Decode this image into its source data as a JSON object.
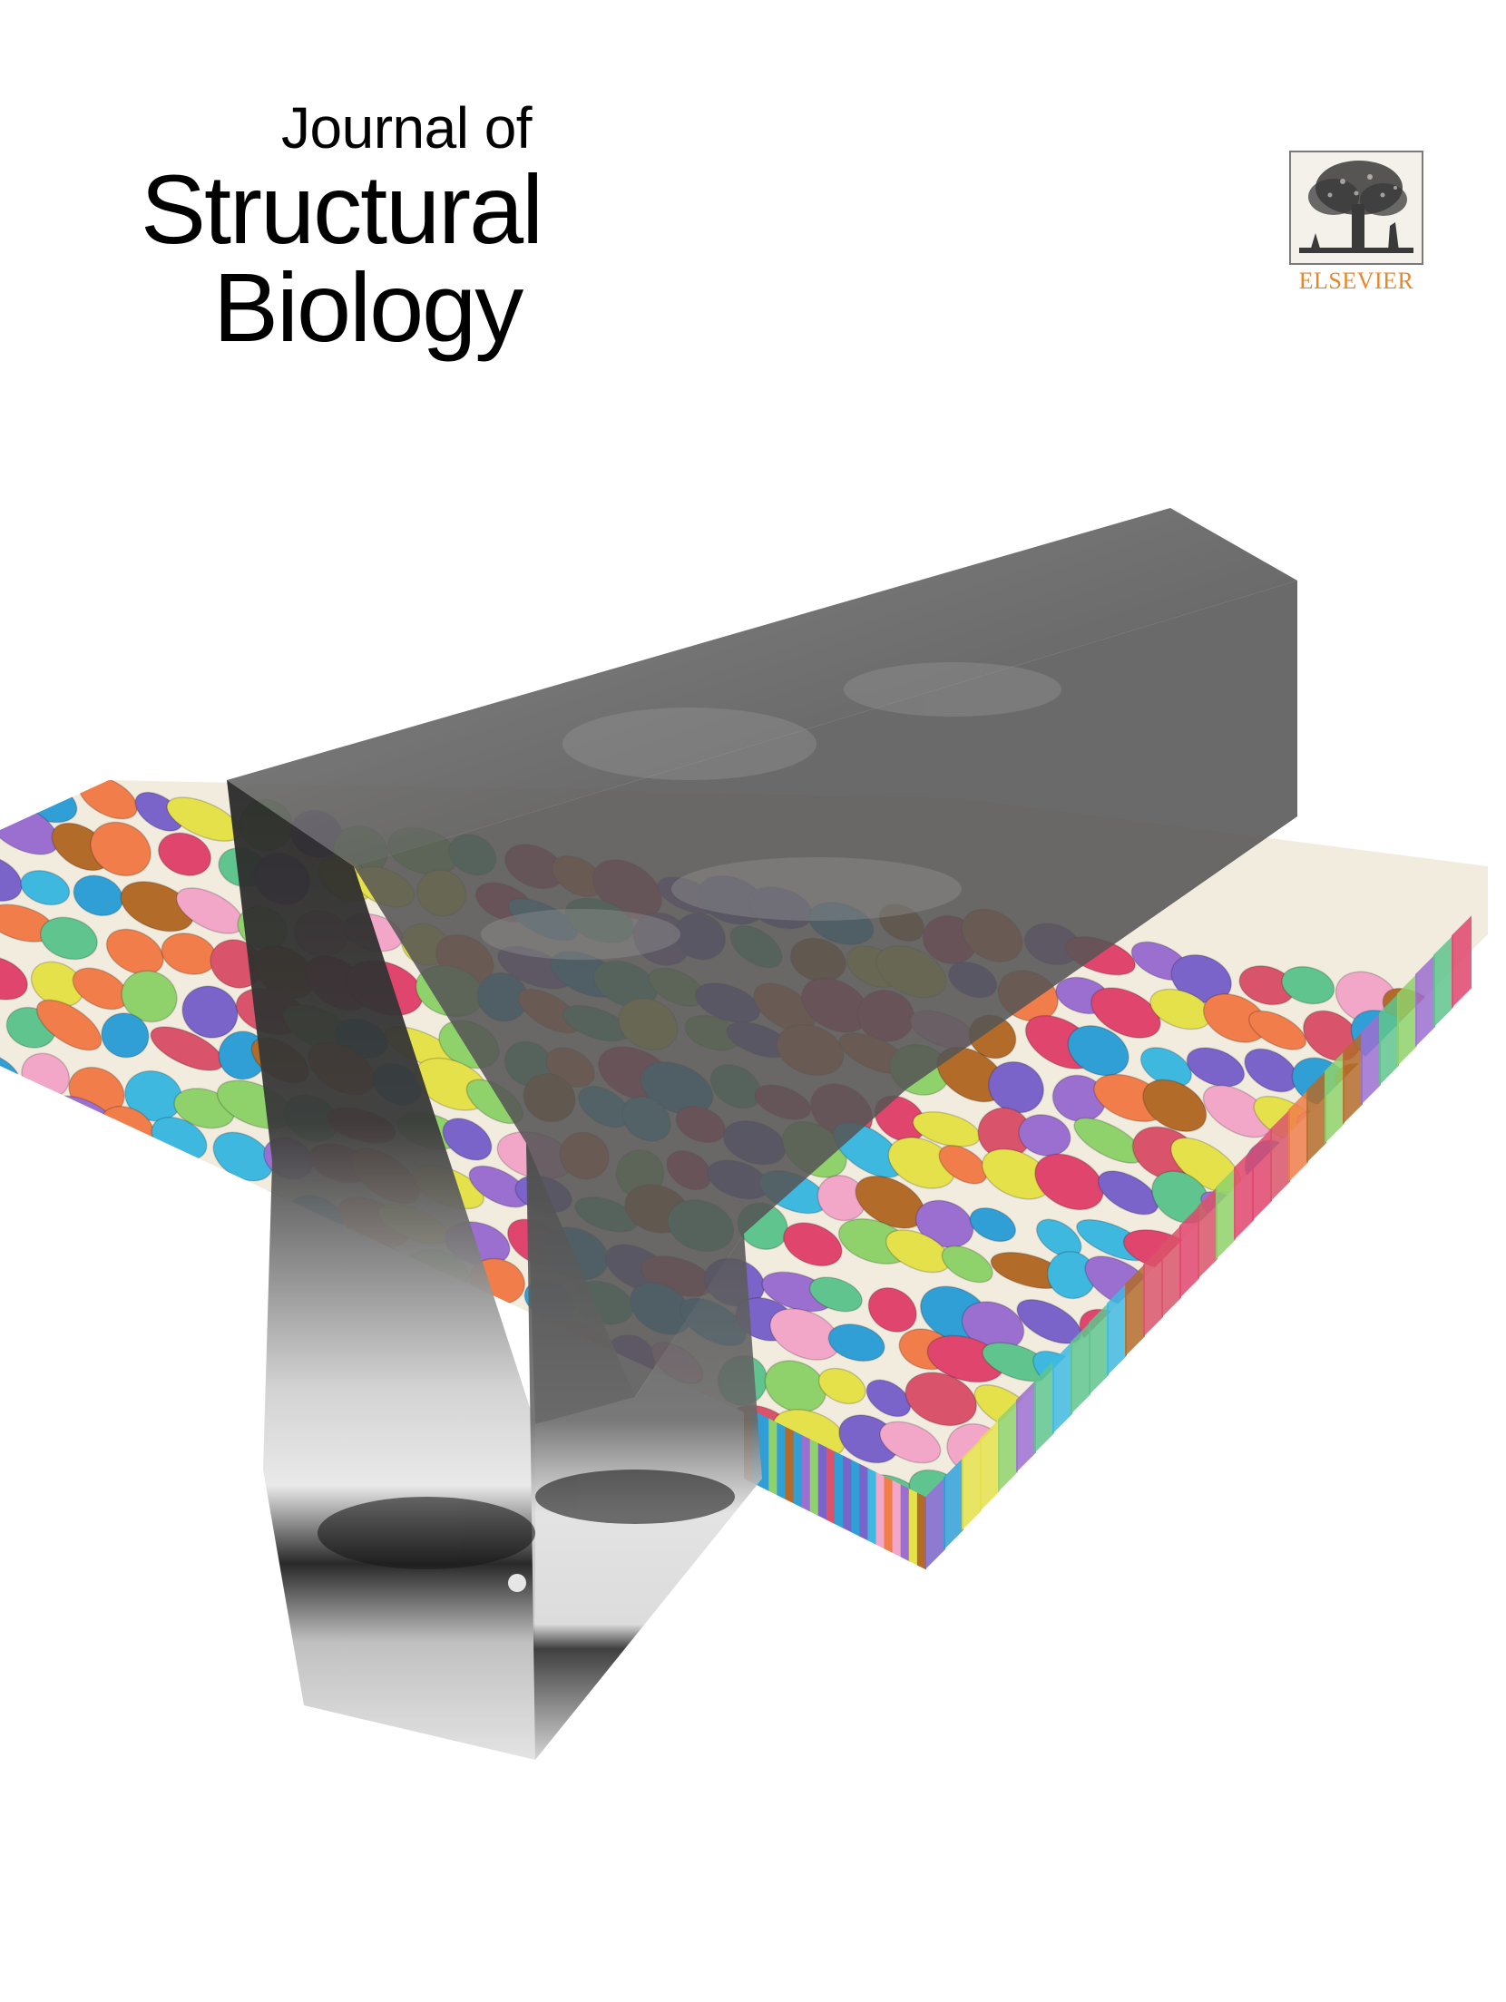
{
  "journal": {
    "title_line1": "Journal of",
    "title_line2": "Structural",
    "title_line3": "Biology"
  },
  "publisher": {
    "name": "ELSEVIER",
    "logo_icon": "elsevier-tree-icon",
    "brand_color": "#e8862a"
  },
  "cover_image": {
    "icon": "segmented-tomography-volume",
    "palette": [
      "#e0456e",
      "#f07d4a",
      "#8fd16a",
      "#3fb8e0",
      "#9b6fd0",
      "#f2a6c8",
      "#e4e14a",
      "#5fc48d",
      "#b36b2a",
      "#2f9fd6",
      "#d9536a",
      "#7a63c9"
    ]
  }
}
